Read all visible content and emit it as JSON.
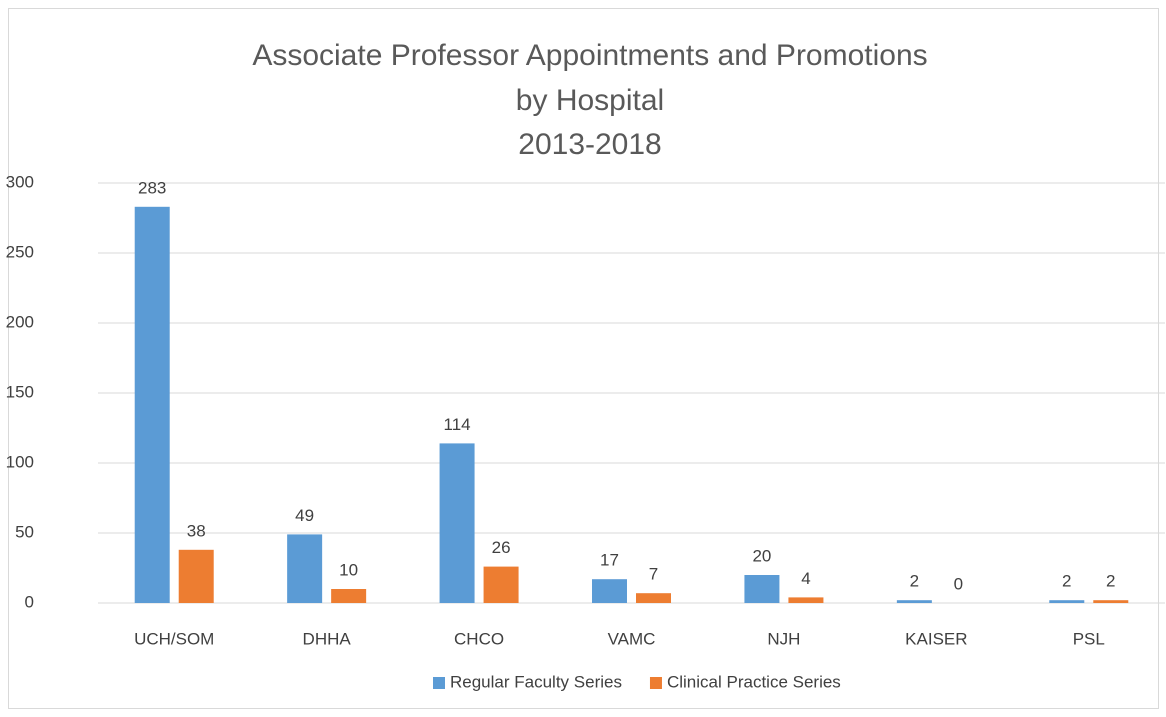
{
  "chart_data": {
    "type": "bar",
    "title": [
      "Associate Professor Appointments and Promotions",
      "by Hospital",
      "2013-2018"
    ],
    "categories": [
      "UCH/SOM",
      "DHHA",
      "CHCO",
      "VAMC",
      "NJH",
      "KAISER",
      "PSL"
    ],
    "series": [
      {
        "name": "Regular Faculty Series",
        "color": "#5b9bd5",
        "values": [
          283,
          49,
          114,
          17,
          20,
          2,
          2
        ]
      },
      {
        "name": "Clinical Practice Series",
        "color": "#ed7d31",
        "values": [
          38,
          10,
          26,
          7,
          4,
          0,
          2
        ]
      }
    ],
    "ylim": [
      0,
      300
    ],
    "yticks": [
      0,
      50,
      100,
      150,
      200,
      250,
      300
    ],
    "grid": true,
    "legend": "bottom"
  }
}
